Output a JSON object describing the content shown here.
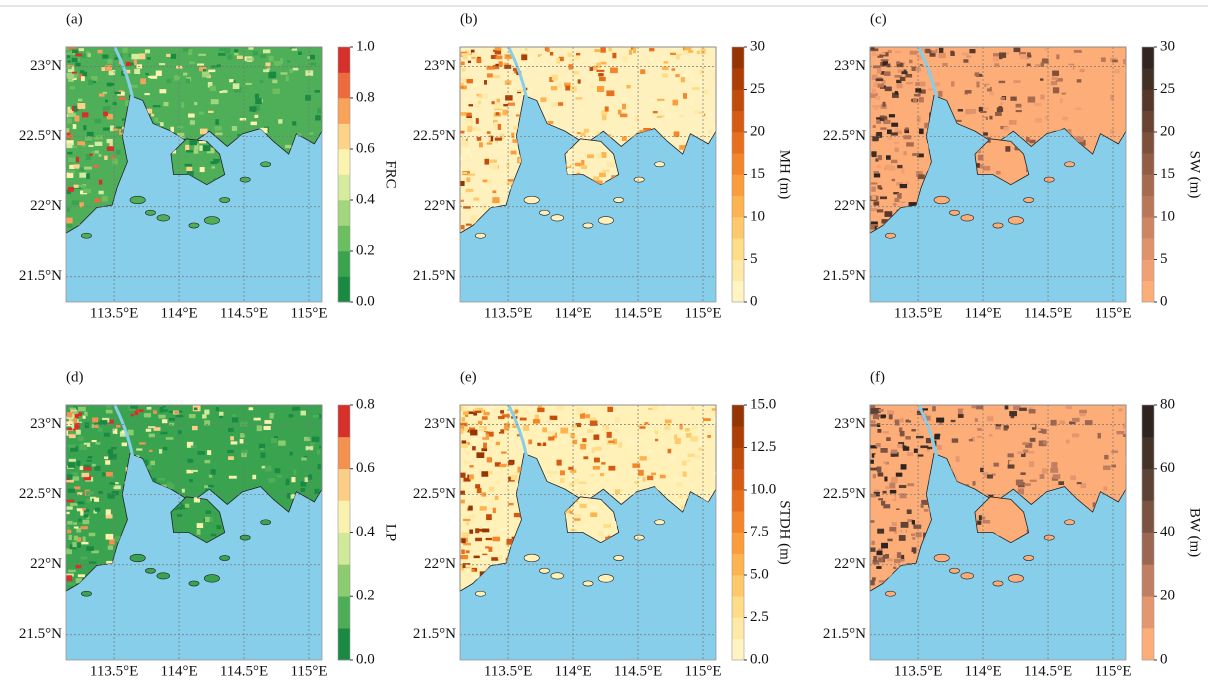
{
  "map": {
    "xlim": [
      113.13,
      115.1
    ],
    "ylim": [
      21.32,
      23.14
    ],
    "xticks": [
      {
        "value": 113.5,
        "label": "113.5°E"
      },
      {
        "value": 114,
        "label": "114°E"
      },
      {
        "value": 114.5,
        "label": "114.5°E"
      },
      {
        "value": 115,
        "label": "115°E"
      }
    ],
    "yticks": [
      {
        "value": 23,
        "label": "23°N"
      },
      {
        "value": 22.5,
        "label": "22.5°N"
      },
      {
        "value": 22,
        "label": "22°N"
      },
      {
        "value": 21.5,
        "label": "21.5°N"
      }
    ],
    "sea_color": "#87ceeb",
    "grid": true
  },
  "panels": [
    {
      "label": "(a)",
      "land_color": "#4fae58",
      "colorbar": {
        "label": "FRC",
        "lim": [
          0,
          1
        ],
        "ticks": [
          {
            "value": 0,
            "label": "0.0"
          },
          {
            "value": 0.2,
            "label": "0.2"
          },
          {
            "value": 0.4,
            "label": "0.4"
          },
          {
            "value": 0.6,
            "label": "0.6"
          },
          {
            "value": 0.8,
            "label": "0.8"
          },
          {
            "value": 1,
            "label": "1.0"
          }
        ],
        "colors": [
          "#1a8a43",
          "#3aa350",
          "#6bbf5f",
          "#a3d67c",
          "#d5ec9f",
          "#fbf3b0",
          "#fdd38a",
          "#f9a25a",
          "#ed6a3d",
          "#d7302a"
        ]
      }
    },
    {
      "label": "(b)",
      "land_color": "#fff1bd",
      "colorbar": {
        "label": "MH (m)",
        "lim": [
          0,
          30
        ],
        "ticks": [
          0,
          5,
          10,
          15,
          20,
          25,
          30
        ],
        "colors": [
          "#fff4c2",
          "#fee9a6",
          "#fedc88",
          "#fdc96a",
          "#fdb450",
          "#fc9d3c",
          "#f4852a",
          "#e86f1e",
          "#d65a12",
          "#c14b0b",
          "#ad3f06",
          "#963504"
        ]
      }
    },
    {
      "label": "(c)",
      "land_color": "#fdae78",
      "colorbar": {
        "label": "SW (m)",
        "lim": [
          0,
          30
        ],
        "ticks": [
          0,
          5,
          10,
          15,
          20,
          25,
          30
        ],
        "colors": [
          "#fdae78",
          "#f0a072",
          "#e0936b",
          "#cd8562",
          "#b97758",
          "#a56a4f",
          "#915d45",
          "#7d503c",
          "#694333",
          "#55372b",
          "#423024",
          "#33251f"
        ]
      }
    },
    {
      "label": "(d)",
      "land_color": "#3aa350",
      "colorbar": {
        "label": "LP",
        "lim": [
          0,
          0.8
        ],
        "ticks": [
          {
            "value": 0,
            "label": "0.0"
          },
          {
            "value": 0.2,
            "label": "0.2"
          },
          {
            "value": 0.4,
            "label": "0.4"
          },
          {
            "value": 0.6,
            "label": "0.6"
          },
          {
            "value": 0.8,
            "label": "0.8"
          }
        ],
        "colors": [
          "#1a8a43",
          "#4dae57",
          "#8ccb6e",
          "#d0e99b",
          "#fbf1ae",
          "#fdcf86",
          "#f4914f",
          "#d7302a"
        ]
      }
    },
    {
      "label": "(e)",
      "land_color": "#fff1b8",
      "colorbar": {
        "label": "STDH (m)",
        "lim": [
          0,
          15
        ],
        "ticks": [
          {
            "value": 0,
            "label": "0.0"
          },
          {
            "value": 2.5,
            "label": "2.5"
          },
          {
            "value": 5,
            "label": "5.0"
          },
          {
            "value": 7.5,
            "label": "7.5"
          },
          {
            "value": 10,
            "label": "10.0"
          },
          {
            "value": 12.5,
            "label": "12.5"
          },
          {
            "value": 15,
            "label": "15.0"
          }
        ],
        "colors": [
          "#fff4c2",
          "#fee9a6",
          "#fedc88",
          "#fdc96a",
          "#fdb450",
          "#fc9d3c",
          "#f4852a",
          "#e86f1e",
          "#d65a12",
          "#c14b0b",
          "#ad3f06",
          "#963504"
        ]
      }
    },
    {
      "label": "(f)",
      "land_color": "#fdae78",
      "colorbar": {
        "label": "BW (m)",
        "lim": [
          0,
          80
        ],
        "ticks": [
          0,
          20,
          40,
          60,
          80
        ],
        "colors": [
          "#fdae78",
          "#e39670",
          "#c07e62",
          "#9c6752",
          "#7b5343",
          "#5e4236",
          "#45332a",
          "#2f2420"
        ]
      }
    }
  ]
}
